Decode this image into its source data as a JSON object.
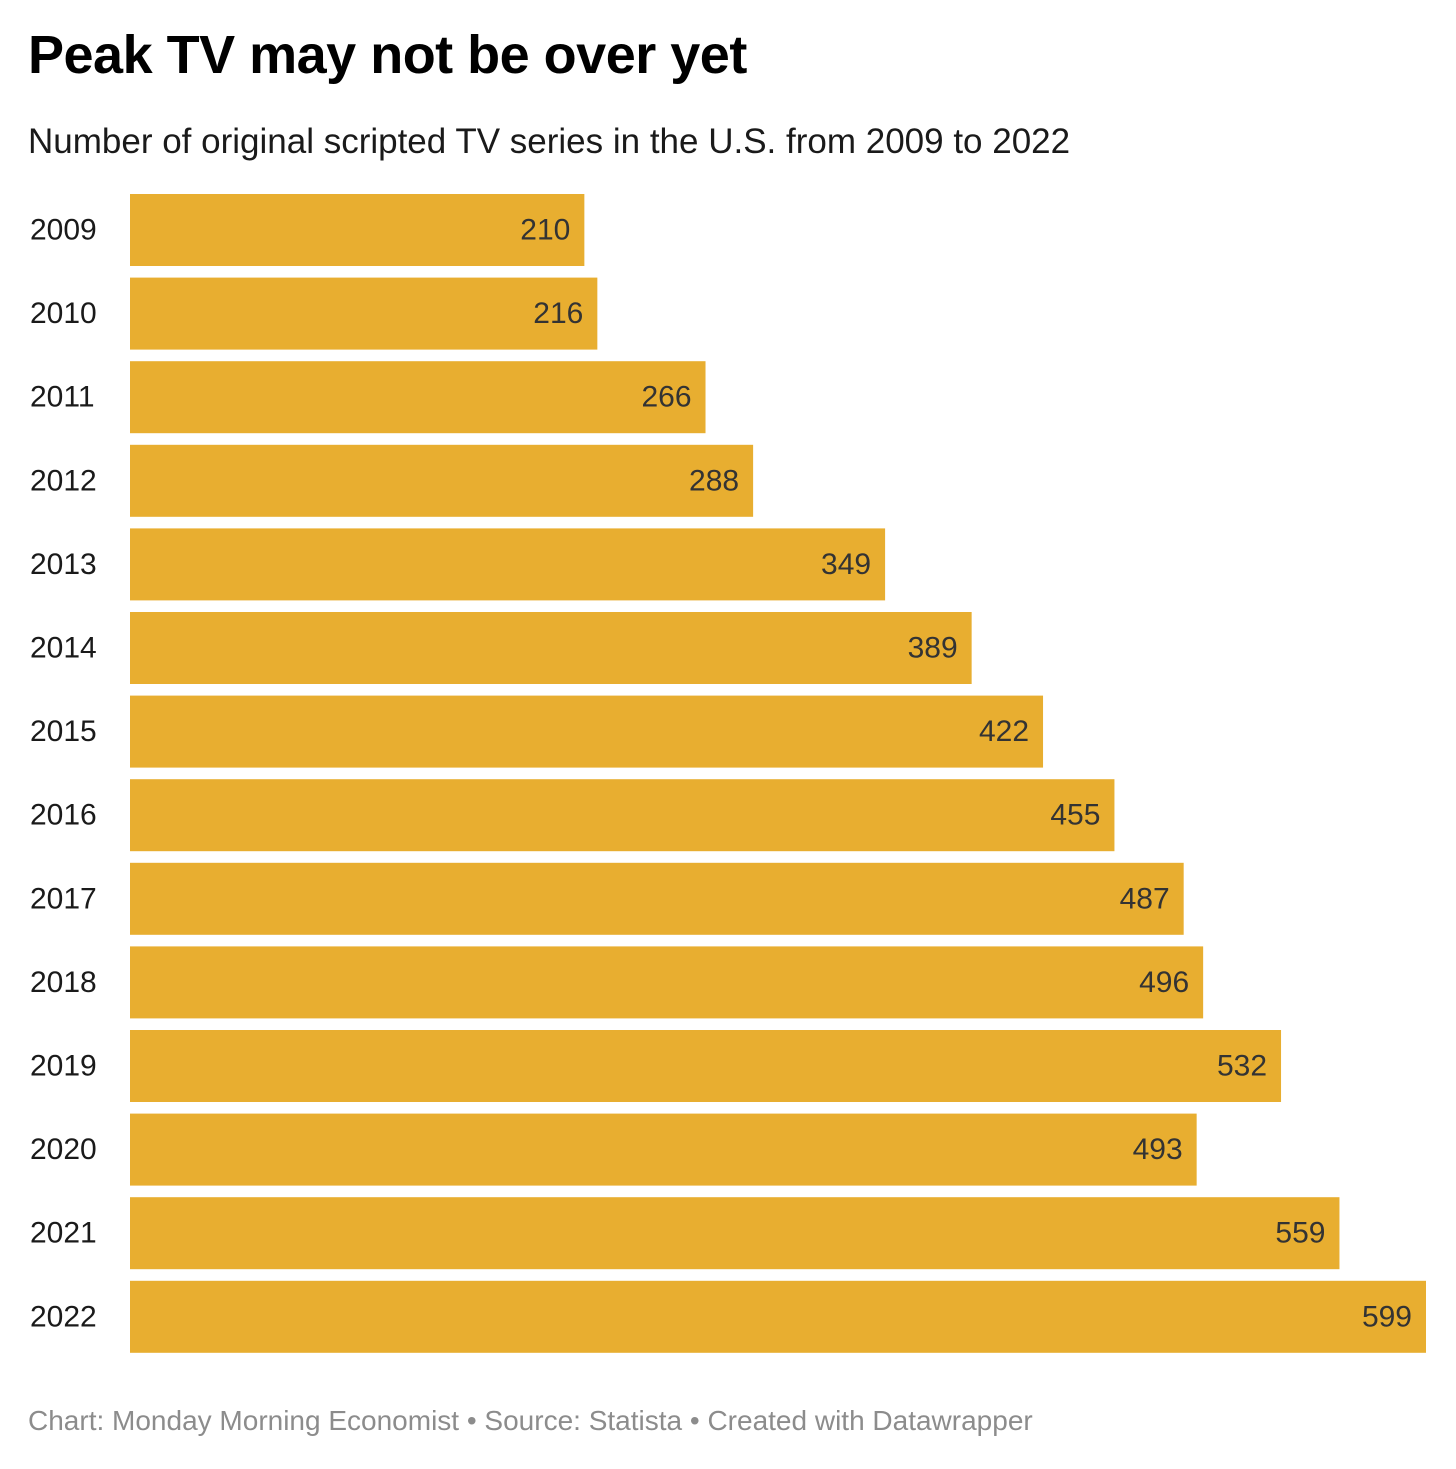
{
  "header": {
    "title": "Peak TV may not be over yet",
    "subtitle": "Number of original scripted TV series in the U.S. from 2009 to 2022"
  },
  "footer": {
    "credit": "Chart: Monday Morning Economist • Source: Statista • Created with Datawrapper"
  },
  "colors": {
    "bar": "#E8AE30",
    "value_label": "#333333",
    "category_label": "#1a1a1a",
    "footer": "#8c8c8c"
  },
  "chart_data": {
    "type": "bar",
    "orientation": "horizontal",
    "title": "Peak TV may not be over yet",
    "subtitle": "Number of original scripted TV series in the U.S. from 2009 to 2022",
    "categories": [
      "2009",
      "2010",
      "2011",
      "2012",
      "2013",
      "2014",
      "2015",
      "2016",
      "2017",
      "2018",
      "2019",
      "2020",
      "2021",
      "2022"
    ],
    "values": [
      210,
      216,
      266,
      288,
      349,
      389,
      422,
      455,
      487,
      496,
      532,
      493,
      559,
      599
    ],
    "xlabel": "",
    "ylabel": "",
    "xlim": [
      0,
      599
    ],
    "grid": false,
    "legend": "none",
    "data_labels": "inside-end"
  }
}
